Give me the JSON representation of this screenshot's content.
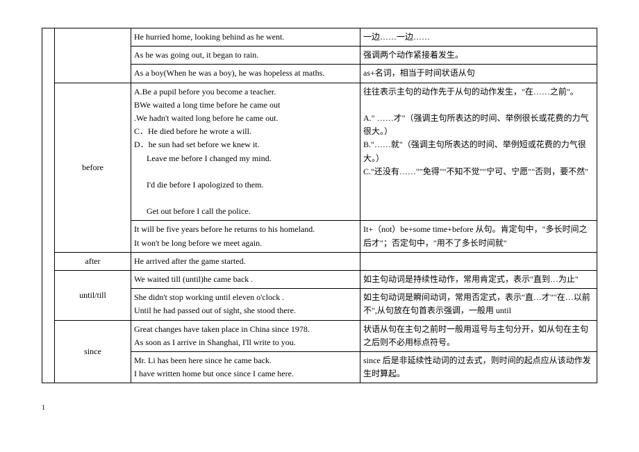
{
  "table": {
    "rows": [
      {
        "label": "",
        "en": "He hurried home, looking behind as he went.",
        "zh": "一边……一边……",
        "rowspan": 1,
        "labelRowspan": 3,
        "showNarrow": true,
        "narrowRowspan": 12
      },
      {
        "en": "As he was going out, it began to rain.",
        "zh": "强调两个动作紧接着发生。"
      },
      {
        "en": "As a boy(When he was a boy), he was hopeless at maths.",
        "zh": "as+名词，相当于时间状语从句"
      },
      {
        "label": "before",
        "labelRowspan": 2,
        "en": "A.Be a pupil before you become a teacher.\nBWe waited a long time before he came out\n.We hadn't waited long before he came out.\nC．He died before he wrote a will.\nD．he sun had set before we knew it.\n   Leave me before I changed my mind.\n   I'd die before I apologized to them.\n   Get out before I call the police.",
        "zh": "往往表示主句的动作先于从句的动作发生，\"在……之前\"。\n\nA.\"  ……才\"（强调主句所表达的时间、举例很长或花费的力气很大。）\nB.\"……就\"（强调主句所表达的时间、举例短或花费的力气很大。）\nC.\"还没有……\"\"免得\"\"不知不觉\"\"宁可、宁愿\"\"否则，要不然\""
      },
      {
        "en": "It will be five years before he returns to his homeland.\nIt won't be long before we meet again.",
        "zh": "It+（not）be+some time+before 从句。肯定句中，\"多长时间之后才\"；否定句中，\"用不了多长时间就\""
      },
      {
        "label": "after",
        "labelRowspan": 1,
        "en": "He arrived after the game started.",
        "zh": ""
      },
      {
        "label": "until/till",
        "labelRowspan": 2,
        "en": "We waited till (until)he came back .",
        "zh": "如主句动词是持续性动作，常用肯定式，表示\"直到…为止\""
      },
      {
        "en": "She didn't stop working until eleven o'clock .\nUntil he had passed out of sight, she stood there.",
        "zh": "如主句动词是瞬间动词，常用否定式，表示\"直…才\"\"在…以前不\",从句放在句首表示强调，一般用 until"
      },
      {
        "label": "since",
        "labelRowspan": 2,
        "en": "Great changes have taken place in China since 1978.\nAs soon as I arrive in Shanghai, I'll write to you.",
        "zh": "状语从句在主句之前时一般用逗号与主句分开，如从句在主句之后则不必用标点符号。"
      },
      {
        "en": "Mr. Li has been here since he came back.\nI have written home but once since I came here.",
        "zh": "since 后是非延续性动词的过去式，则时间的起点应从该动作发生时算起。"
      }
    ]
  },
  "pageNumber": "1",
  "colors": {
    "border": "#000000",
    "background": "#ffffff",
    "text": "#000000"
  }
}
